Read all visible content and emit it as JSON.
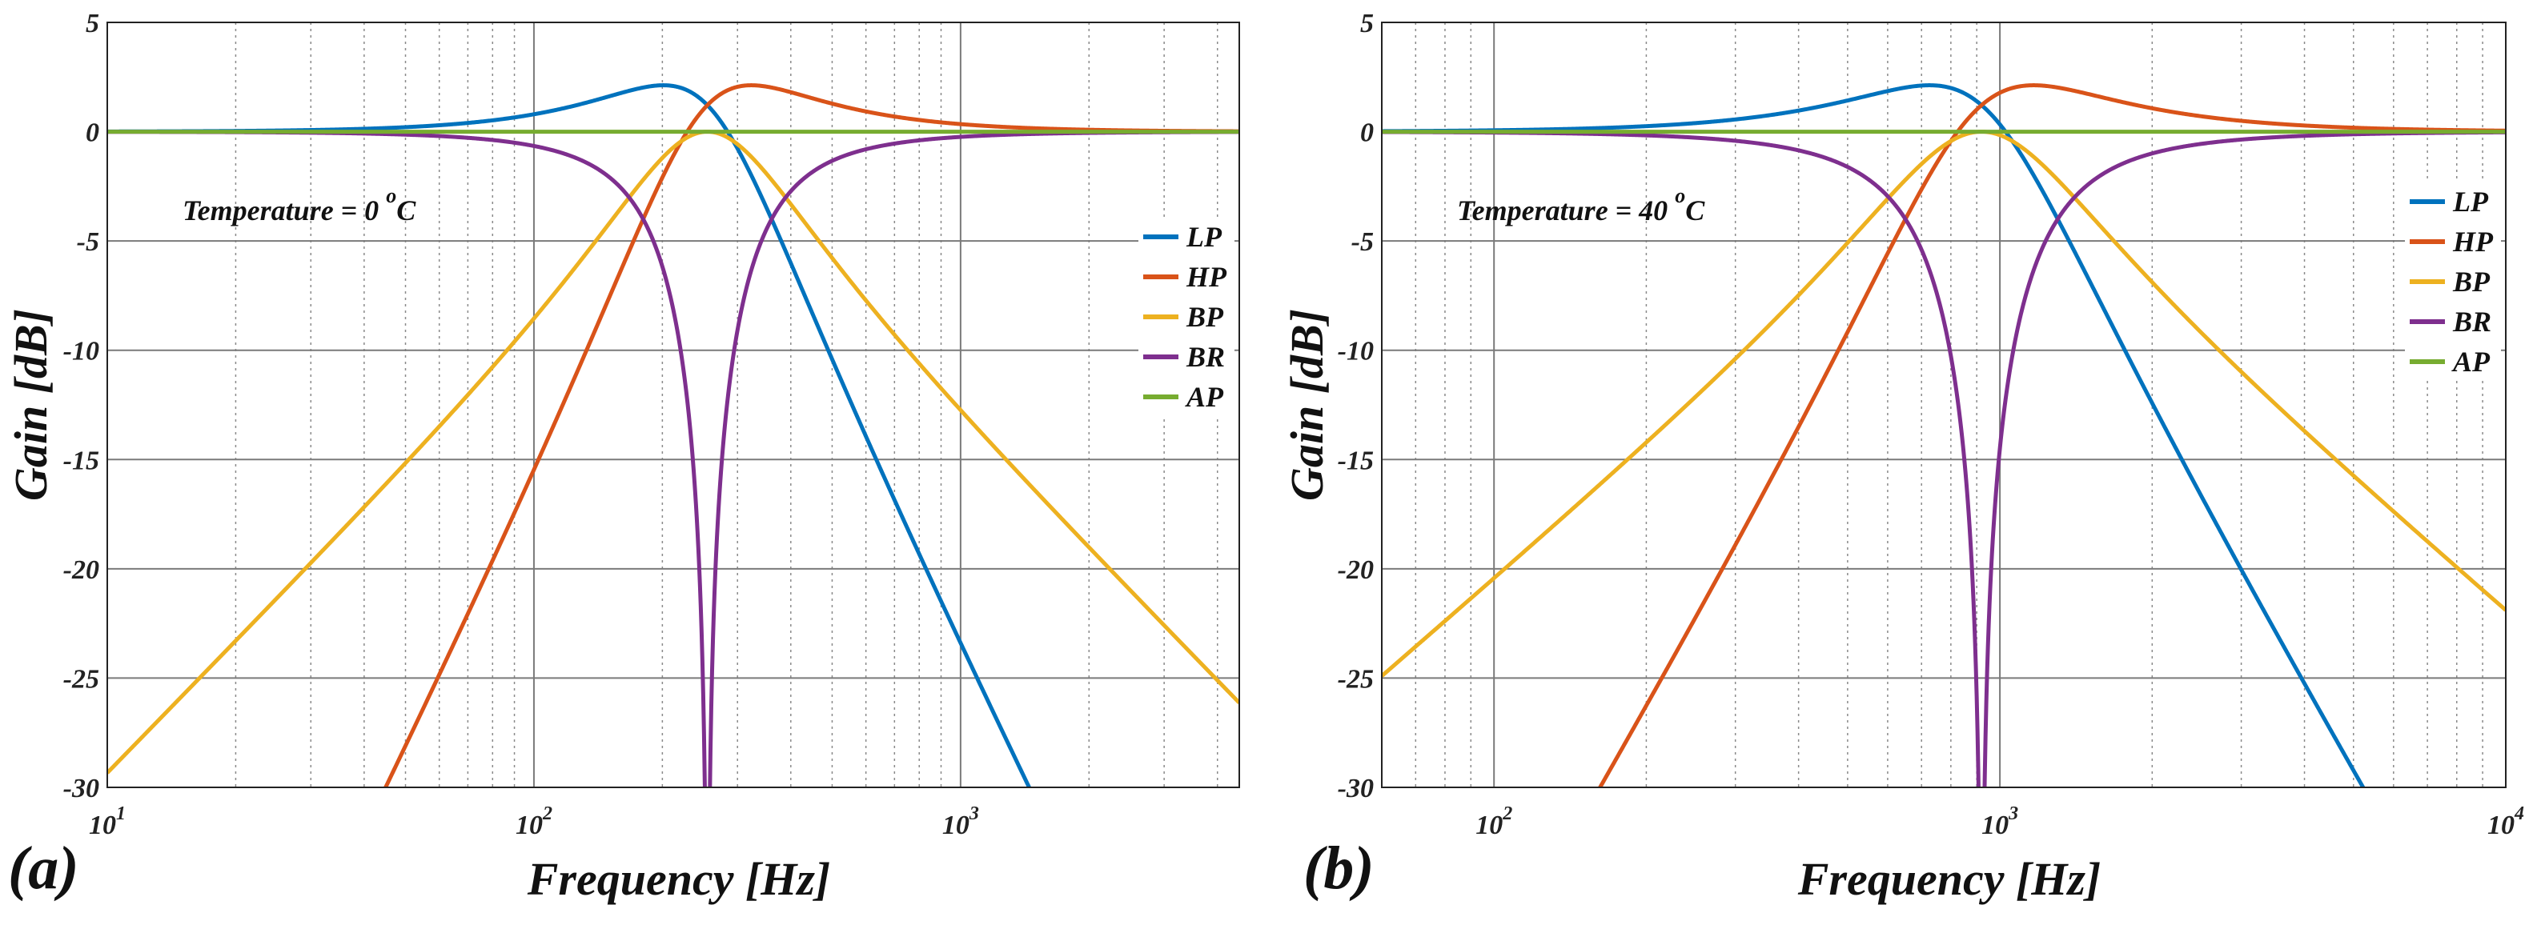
{
  "chart_data": [
    {
      "type": "line",
      "panel_label": "(a)",
      "xscale": "log",
      "xlim": [
        10,
        4500
      ],
      "ylim": [
        -30,
        5
      ],
      "xlabel": "Frequency [Hz]",
      "ylabel": "Gain [dB]",
      "xticks": [
        {
          "base": "10",
          "exp": "1"
        },
        {
          "base": "10",
          "exp": "2"
        },
        {
          "base": "10",
          "exp": "3"
        }
      ],
      "yticks": [
        "5",
        "0",
        "-5",
        "-10",
        "-15",
        "-20",
        "-25",
        "-30"
      ],
      "annotation": {
        "prefix": "Temperature = 0 ",
        "degree": "o",
        "unit": "C"
      },
      "filter": {
        "f0_hz": 255,
        "Q": 1.15
      },
      "legend_position": "right",
      "series": [
        {
          "name": "LP",
          "color": "#0072BD",
          "response": "lowpass"
        },
        {
          "name": "HP",
          "color": "#D95319",
          "response": "highpass"
        },
        {
          "name": "BP",
          "color": "#EDB120",
          "response": "bandpass"
        },
        {
          "name": "BR",
          "color": "#7E2F8E",
          "response": "bandreject"
        },
        {
          "name": "AP",
          "color": "#77AC30",
          "response": "allpass"
        }
      ]
    },
    {
      "type": "line",
      "panel_label": "(b)",
      "xscale": "log",
      "xlim": [
        60,
        10000
      ],
      "ylim": [
        -30,
        5
      ],
      "xlabel": "Frequency [Hz]",
      "ylabel": "Gain [dB]",
      "xticks": [
        {
          "base": "10",
          "exp": "2"
        },
        {
          "base": "10",
          "exp": "3"
        },
        {
          "base": "10",
          "exp": "4"
        }
      ],
      "yticks": [
        "5",
        "0",
        "-5",
        "-10",
        "-15",
        "-20",
        "-25",
        "-30"
      ],
      "annotation": {
        "prefix": "Temperature = 40 ",
        "degree": "o",
        "unit": "C"
      },
      "filter": {
        "f0_hz": 920,
        "Q": 1.15
      },
      "legend_position": "right",
      "series": [
        {
          "name": "LP",
          "color": "#0072BD",
          "response": "lowpass"
        },
        {
          "name": "HP",
          "color": "#D95319",
          "response": "highpass"
        },
        {
          "name": "BP",
          "color": "#EDB120",
          "response": "bandpass"
        },
        {
          "name": "BR",
          "color": "#7E2F8E",
          "response": "bandreject"
        },
        {
          "name": "AP",
          "color": "#77AC30",
          "response": "allpass"
        }
      ]
    }
  ]
}
